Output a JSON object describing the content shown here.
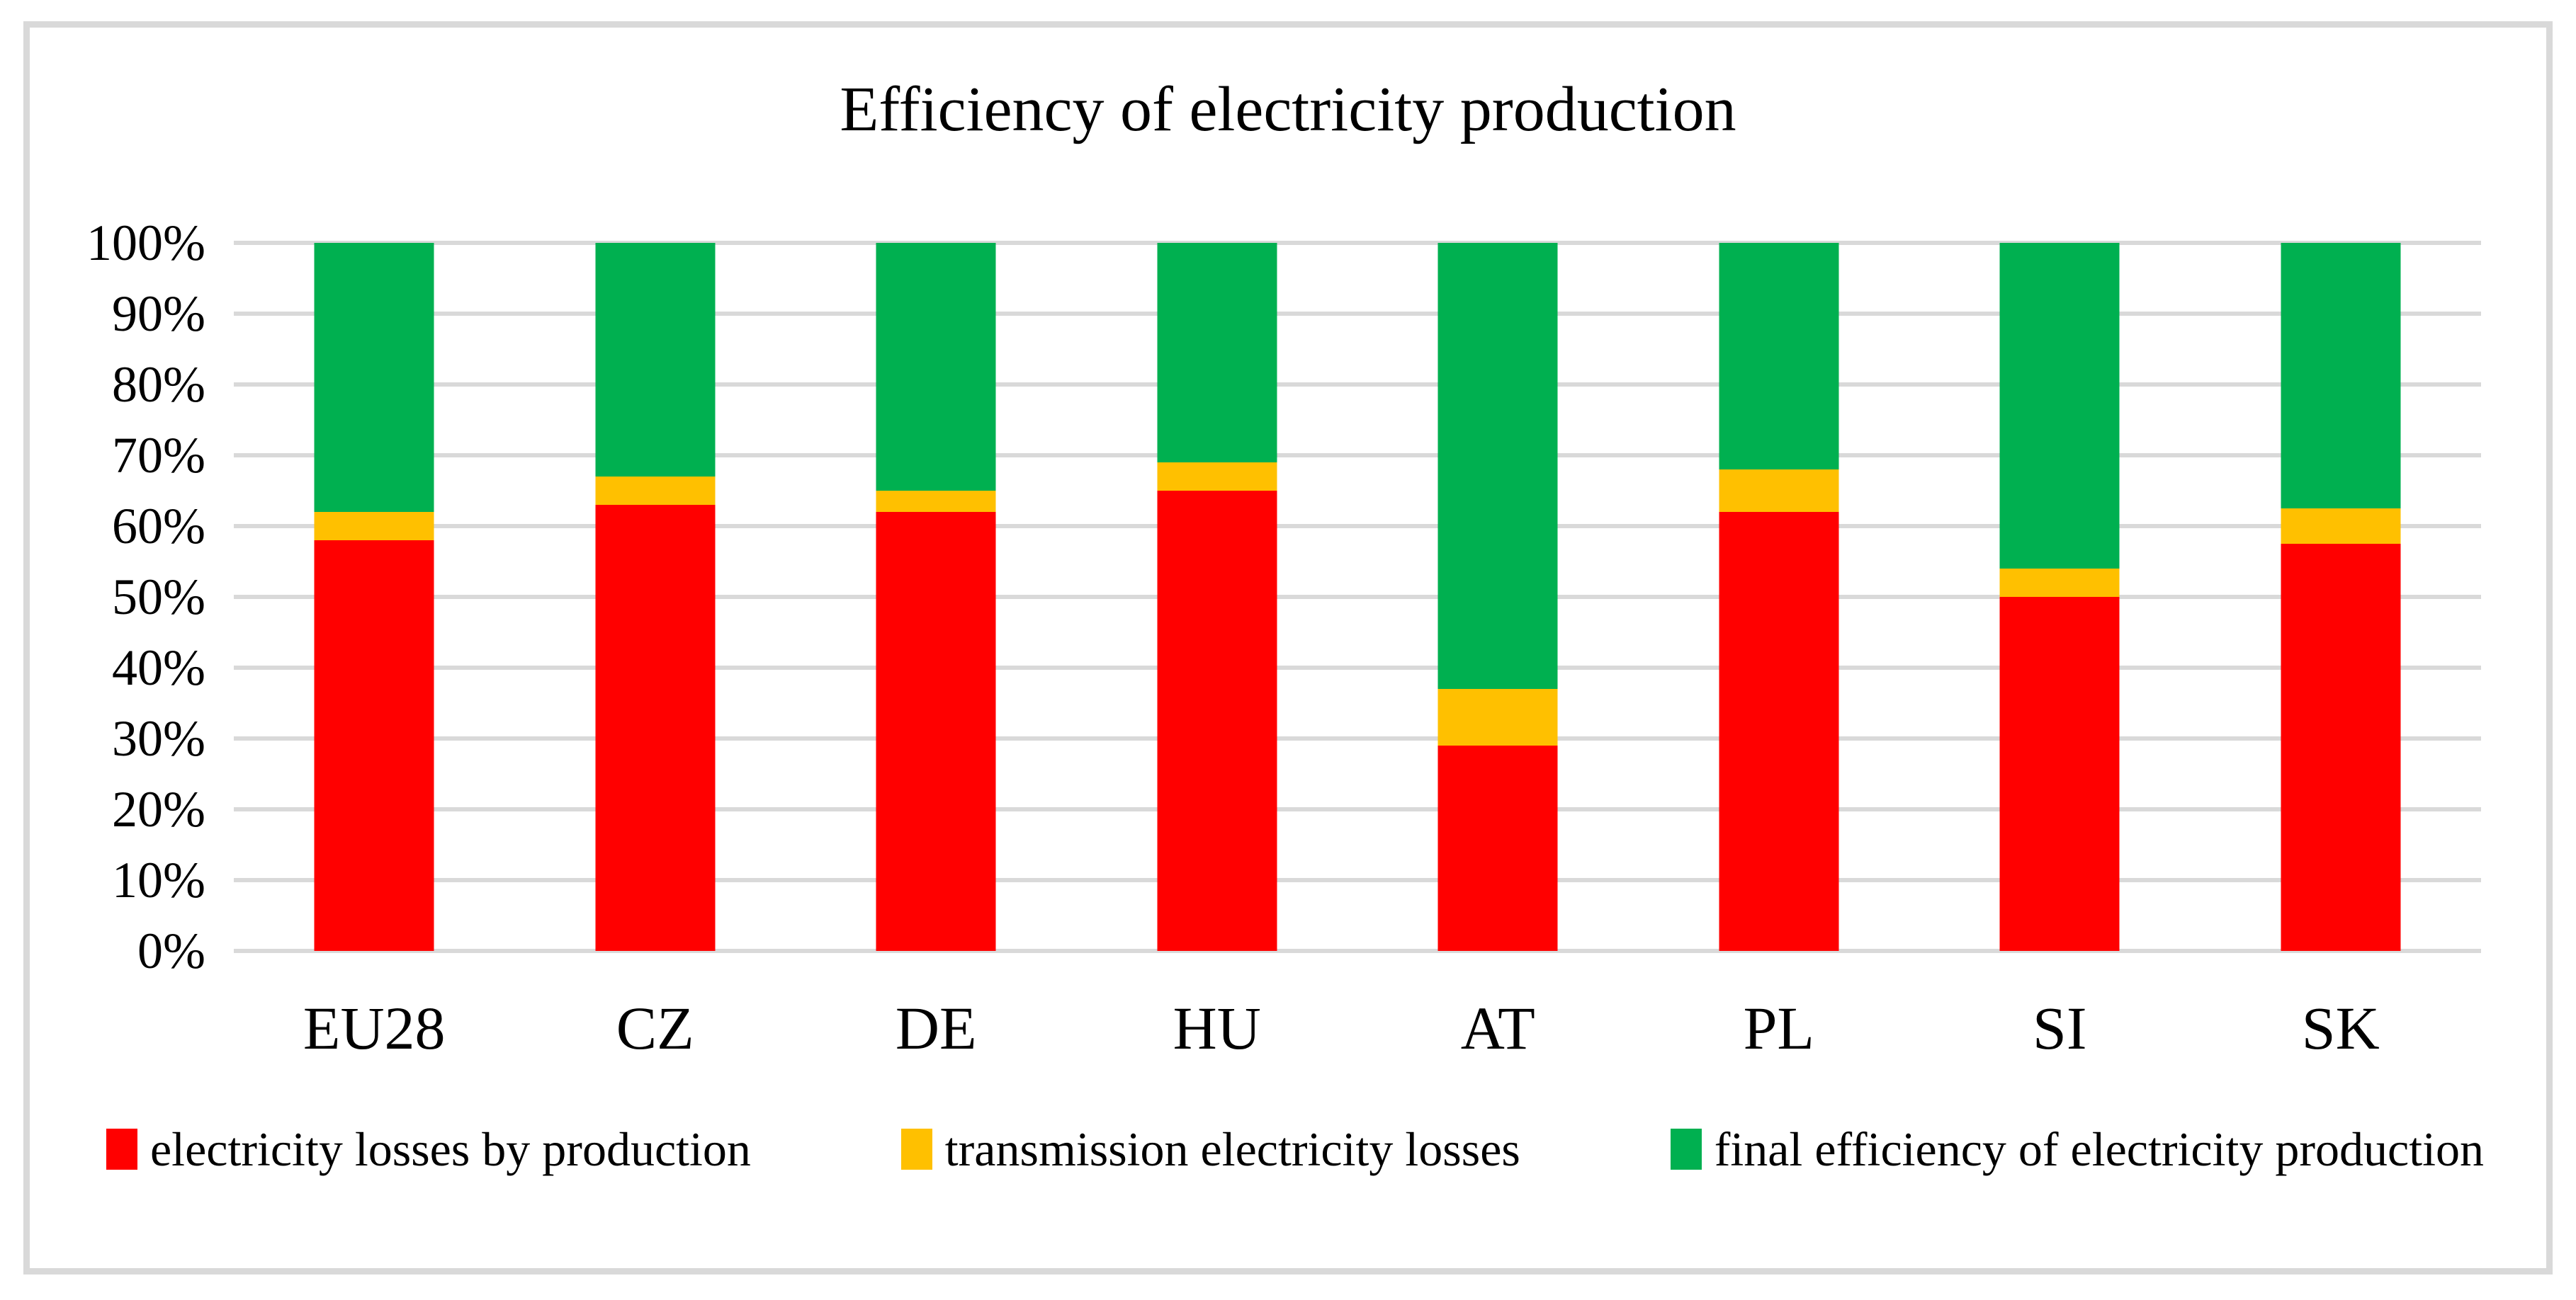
{
  "chart_data": {
    "type": "bar",
    "stacked": true,
    "title": "Efficiency of electricity production",
    "categories": [
      "EU28",
      "CZ",
      "DE",
      "HU",
      "AT",
      "PL",
      "SI",
      "SK"
    ],
    "series": [
      {
        "name": "electricity losses by production",
        "color": "#FF0000",
        "values": [
          58,
          63,
          62,
          65,
          29,
          62,
          50,
          57.5
        ]
      },
      {
        "name": "transmission electricity losses",
        "color": "#FFC000",
        "values": [
          4,
          4,
          3,
          4,
          8,
          6,
          4,
          5
        ]
      },
      {
        "name": "final efficiency of electricity production",
        "color": "#00B050",
        "values": [
          38,
          33,
          35,
          31,
          63,
          32,
          46,
          37.5
        ]
      }
    ],
    "xlabel": "",
    "ylabel": "",
    "ylim": [
      0,
      100
    ],
    "yticks": [
      "0%",
      "10%",
      "20%",
      "30%",
      "40%",
      "50%",
      "60%",
      "70%",
      "80%",
      "90%",
      "100%"
    ],
    "grid": true,
    "legend_position": "bottom",
    "colors": {
      "gridline": "#D9D9D9",
      "frame_border": "#D9D9D9",
      "background": "#FFFFFF",
      "text": "#000000"
    }
  }
}
